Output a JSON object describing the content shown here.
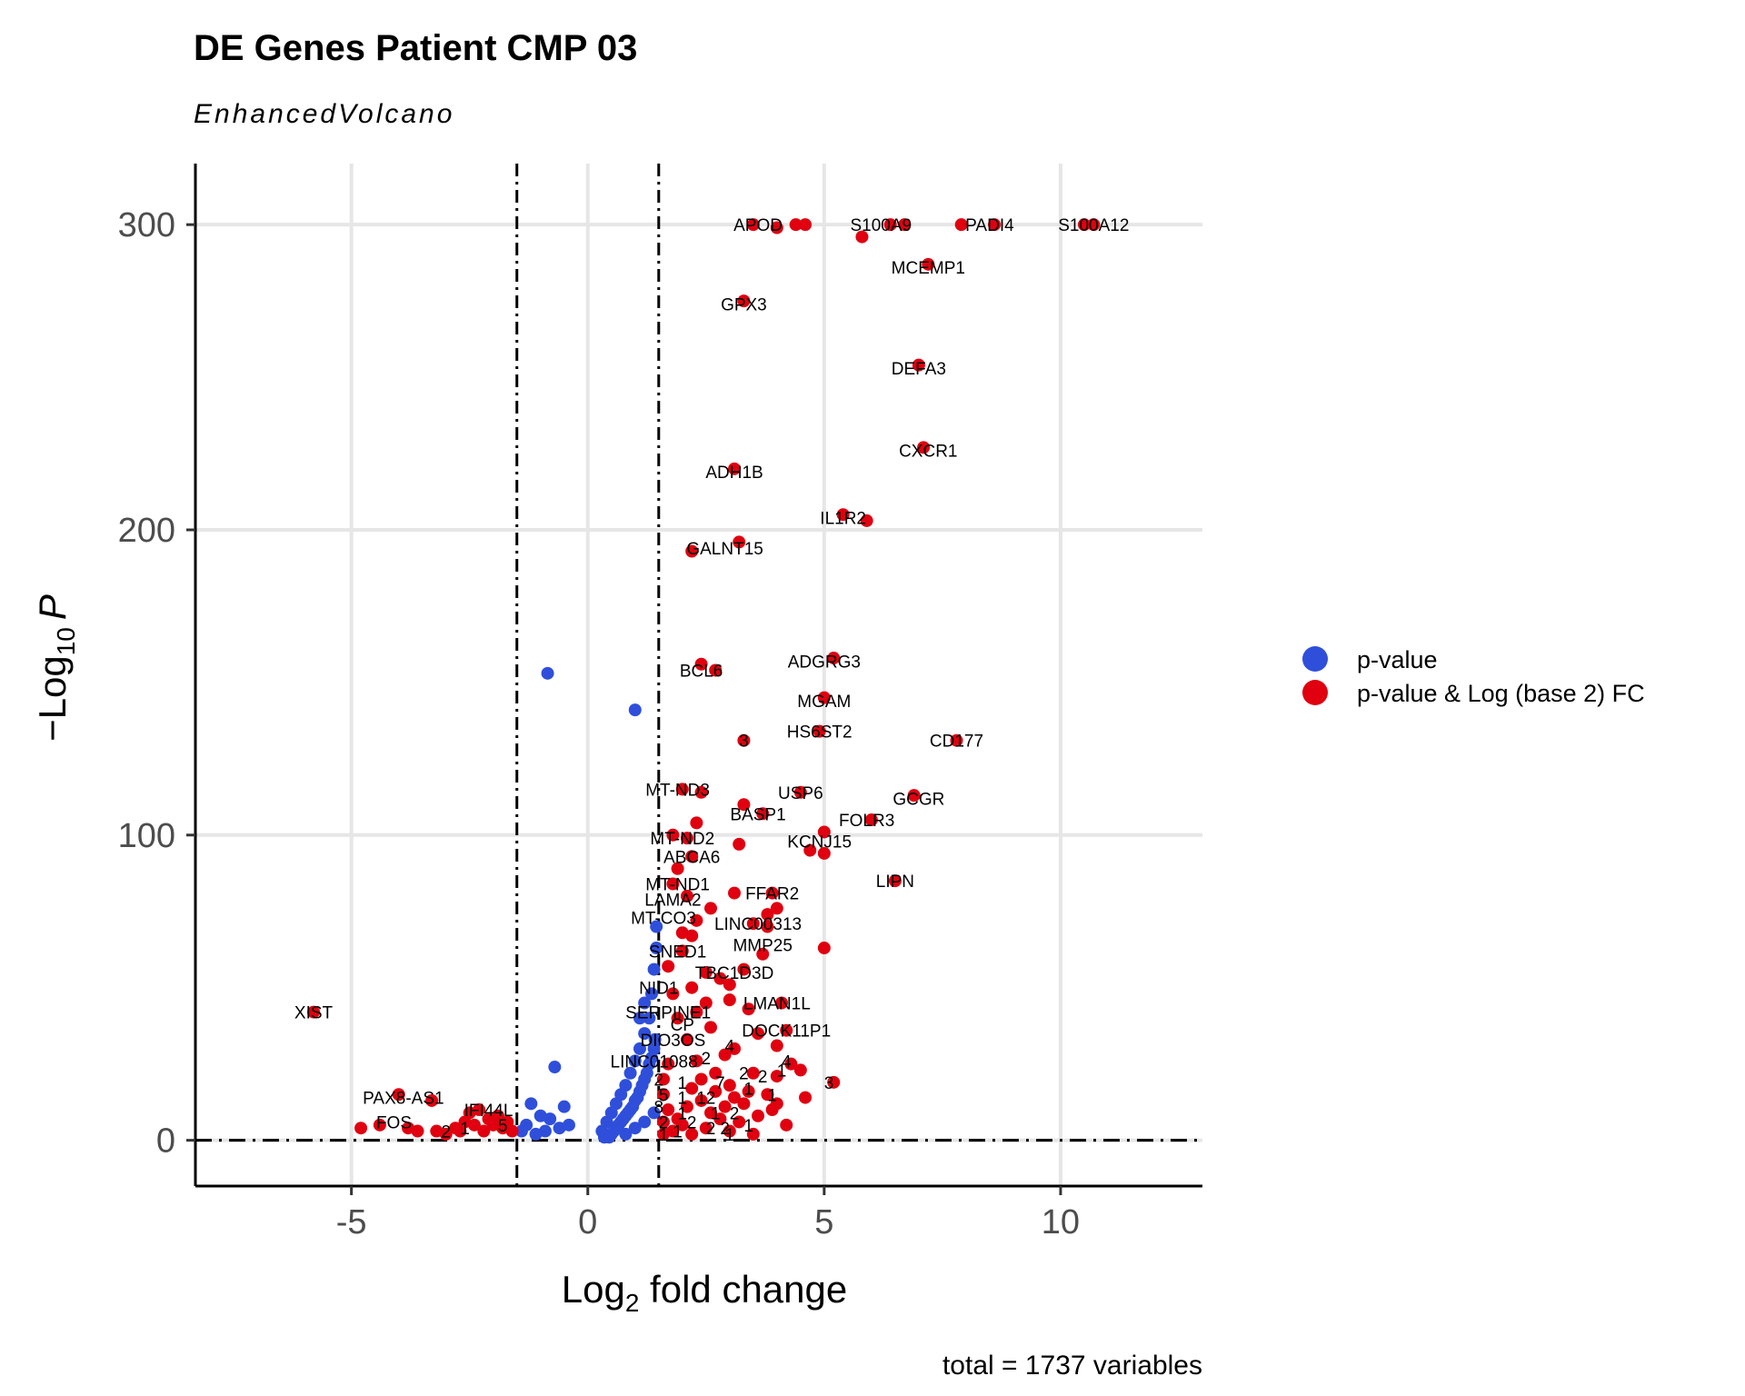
{
  "chart_data": {
    "type": "scatter",
    "title": "DE Genes Patient CMP 03",
    "subtitle": "EnhancedVolcano",
    "xlabel": {
      "main": "Log",
      "sub": "2",
      "rest": " fold change"
    },
    "ylabel": {
      "prefix": "−Log",
      "sub": "10",
      "italic": "P"
    },
    "caption": "total = 1737 variables",
    "xlim": [
      -8.3,
      13
    ],
    "ylim": [
      -15,
      320
    ],
    "x_ticks": [
      -5,
      0,
      5,
      10
    ],
    "x_tick_labels": [
      "-5",
      "0",
      "5",
      "10"
    ],
    "y_ticks": [
      0,
      100,
      200,
      300
    ],
    "y_tick_labels": [
      "0",
      "100",
      "200",
      "300"
    ],
    "fc_cutoff": [
      -1.5,
      1.5
    ],
    "p_cutoff_y": 0,
    "grid": true,
    "legend_position": "right",
    "series": [
      {
        "name": "p-value",
        "color": "#2f4fdb",
        "points": [
          [
            -0.85,
            153
          ],
          [
            1.0,
            141
          ],
          [
            -0.7,
            24
          ],
          [
            -0.5,
            11
          ],
          [
            -1.2,
            12
          ],
          [
            -1.0,
            8
          ],
          [
            -0.8,
            7
          ],
          [
            -1.3,
            5
          ],
          [
            -0.6,
            4
          ],
          [
            -0.9,
            3
          ],
          [
            -1.1,
            2
          ],
          [
            -1.4,
            3
          ],
          [
            -0.4,
            5
          ],
          [
            0.3,
            3
          ],
          [
            0.4,
            6
          ],
          [
            0.5,
            9
          ],
          [
            0.6,
            12
          ],
          [
            0.7,
            15
          ],
          [
            0.8,
            18
          ],
          [
            0.9,
            22
          ],
          [
            1.0,
            26
          ],
          [
            1.1,
            30
          ],
          [
            1.2,
            35
          ],
          [
            1.3,
            40
          ],
          [
            1.35,
            48
          ],
          [
            1.4,
            56
          ],
          [
            1.45,
            63
          ],
          [
            1.45,
            70
          ],
          [
            0.5,
            2
          ],
          [
            0.6,
            4
          ],
          [
            0.7,
            6
          ],
          [
            0.8,
            8
          ],
          [
            0.9,
            10
          ],
          [
            1.0,
            13
          ],
          [
            1.1,
            16
          ],
          [
            1.2,
            20
          ],
          [
            1.3,
            25
          ],
          [
            1.4,
            30
          ],
          [
            0.45,
            1
          ],
          [
            0.55,
            3
          ],
          [
            0.65,
            5
          ],
          [
            0.75,
            7
          ],
          [
            0.85,
            9
          ],
          [
            0.95,
            11
          ],
          [
            1.05,
            14
          ],
          [
            1.15,
            18
          ],
          [
            1.25,
            22
          ],
          [
            1.35,
            27
          ],
          [
            1.42,
            33
          ],
          [
            0.35,
            1
          ],
          [
            0.8,
            2
          ],
          [
            1.0,
            4
          ],
          [
            1.2,
            6
          ],
          [
            1.4,
            9
          ],
          [
            1.1,
            40
          ],
          [
            1.2,
            45
          ]
        ]
      },
      {
        "name": "p-value & Log (base 2) FC",
        "color": "#e0000f",
        "points": [
          [
            3.5,
            300
          ],
          [
            4.4,
            300
          ],
          [
            4.6,
            300
          ],
          [
            6.4,
            300
          ],
          [
            6.7,
            300
          ],
          [
            7.9,
            300
          ],
          [
            8.6,
            300
          ],
          [
            10.5,
            300
          ],
          [
            10.7,
            300
          ],
          [
            4.0,
            299
          ],
          [
            5.8,
            296
          ],
          [
            7.2,
            287
          ],
          [
            3.3,
            275
          ],
          [
            7.0,
            254
          ],
          [
            7.1,
            227
          ],
          [
            3.1,
            220
          ],
          [
            5.4,
            205
          ],
          [
            5.9,
            203
          ],
          [
            3.2,
            196
          ],
          [
            2.2,
            193
          ],
          [
            5.2,
            158
          ],
          [
            2.4,
            156
          ],
          [
            2.7,
            154
          ],
          [
            5.0,
            145
          ],
          [
            4.9,
            134
          ],
          [
            7.8,
            131
          ],
          [
            3.3,
            131
          ],
          [
            2.0,
            115
          ],
          [
            2.4,
            114
          ],
          [
            4.5,
            114
          ],
          [
            6.9,
            113
          ],
          [
            3.3,
            110
          ],
          [
            3.7,
            107
          ],
          [
            6.0,
            105
          ],
          [
            2.3,
            104
          ],
          [
            5.0,
            101
          ],
          [
            1.8,
            100
          ],
          [
            2.1,
            99
          ],
          [
            3.2,
            97
          ],
          [
            4.7,
            95
          ],
          [
            5.0,
            94
          ],
          [
            1.9,
            89
          ],
          [
            2.2,
            93
          ],
          [
            6.5,
            85
          ],
          [
            1.8,
            84
          ],
          [
            2.1,
            80
          ],
          [
            3.1,
            81
          ],
          [
            3.9,
            81
          ],
          [
            4.0,
            76
          ],
          [
            3.8,
            74
          ],
          [
            2.6,
            76
          ],
          [
            2.3,
            72
          ],
          [
            3.5,
            71
          ],
          [
            3.8,
            70
          ],
          [
            2.0,
            68
          ],
          [
            2.2,
            67
          ],
          [
            3.7,
            61
          ],
          [
            5.0,
            63
          ],
          [
            2.0,
            62
          ],
          [
            1.7,
            57
          ],
          [
            2.5,
            55
          ],
          [
            2.8,
            53
          ],
          [
            3.3,
            56
          ],
          [
            3.0,
            51
          ],
          [
            2.2,
            50
          ],
          [
            1.8,
            48
          ],
          [
            4.1,
            45
          ],
          [
            2.5,
            45
          ],
          [
            3.0,
            46
          ],
          [
            1.9,
            40
          ],
          [
            2.3,
            42
          ],
          [
            3.4,
            43
          ],
          [
            4.2,
            36
          ],
          [
            2.6,
            37
          ],
          [
            3.6,
            35
          ],
          [
            4.0,
            31
          ],
          [
            2.1,
            33
          ],
          [
            3.1,
            30
          ],
          [
            2.9,
            28
          ],
          [
            2.3,
            26
          ],
          [
            4.3,
            25
          ],
          [
            4.5,
            23
          ],
          [
            3.5,
            22
          ],
          [
            4.0,
            21
          ],
          [
            5.2,
            19
          ],
          [
            3.0,
            18
          ],
          [
            2.7,
            16
          ],
          [
            3.8,
            15
          ],
          [
            4.6,
            14
          ],
          [
            2.4,
            13
          ],
          [
            3.3,
            12
          ],
          [
            2.1,
            11
          ],
          [
            3.9,
            10
          ],
          [
            2.6,
            9
          ],
          [
            3.6,
            8
          ],
          [
            2.8,
            7
          ],
          [
            3.2,
            6
          ],
          [
            2.0,
            5
          ],
          [
            4.2,
            5
          ],
          [
            2.5,
            4
          ],
          [
            3.0,
            3
          ],
          [
            3.5,
            2
          ],
          [
            1.8,
            3
          ],
          [
            2.2,
            2
          ],
          [
            1.9,
            7
          ],
          [
            1.7,
            10
          ],
          [
            1.6,
            15
          ],
          [
            1.6,
            20
          ],
          [
            1.7,
            25
          ],
          [
            2.4,
            20
          ],
          [
            2.7,
            22
          ],
          [
            3.4,
            16
          ],
          [
            3.1,
            14
          ],
          [
            2.9,
            11
          ],
          [
            2.2,
            17
          ],
          [
            4.0,
            12
          ],
          [
            1.6,
            6
          ],
          [
            1.6,
            2
          ],
          [
            -5.8,
            42
          ],
          [
            -4.0,
            15
          ],
          [
            -3.3,
            13
          ],
          [
            -4.8,
            4
          ],
          [
            -4.4,
            5
          ],
          [
            -3.6,
            3
          ],
          [
            -3.8,
            4
          ],
          [
            -3.0,
            2
          ],
          [
            -2.8,
            4
          ],
          [
            -2.6,
            6
          ],
          [
            -2.4,
            5
          ],
          [
            -2.2,
            3
          ],
          [
            -2.0,
            5
          ],
          [
            -1.9,
            8
          ],
          [
            -2.5,
            9
          ],
          [
            -2.3,
            10
          ],
          [
            -1.8,
            4
          ],
          [
            -2.7,
            3
          ],
          [
            -3.2,
            3
          ],
          [
            -2.1,
            7
          ],
          [
            -1.7,
            6
          ],
          [
            -1.6,
            3
          ]
        ]
      }
    ],
    "gene_labels": [
      {
        "text": "APOD",
        "x": 3.6,
        "y": 300
      },
      {
        "text": "S100A9",
        "x": 6.2,
        "y": 300
      },
      {
        "text": "PADI4",
        "x": 8.5,
        "y": 300
      },
      {
        "text": "S100A12",
        "x": 10.7,
        "y": 300
      },
      {
        "text": "MCEMP1",
        "x": 7.2,
        "y": 286
      },
      {
        "text": "GPX3",
        "x": 3.3,
        "y": 274
      },
      {
        "text": "DEFA3",
        "x": 7.0,
        "y": 253
      },
      {
        "text": "CXCR1",
        "x": 7.2,
        "y": 226
      },
      {
        "text": "ADH1B",
        "x": 3.1,
        "y": 219
      },
      {
        "text": "IL1R2",
        "x": 5.4,
        "y": 204
      },
      {
        "text": "GALNT15",
        "x": 2.9,
        "y": 194
      },
      {
        "text": "ADGRG3",
        "x": 5.0,
        "y": 157
      },
      {
        "text": "BCL6",
        "x": 2.4,
        "y": 154
      },
      {
        "text": "MGAM",
        "x": 5.0,
        "y": 144
      },
      {
        "text": "HS6ST2",
        "x": 4.9,
        "y": 134
      },
      {
        "text": "CD177",
        "x": 7.8,
        "y": 131
      },
      {
        "text": "3",
        "x": 3.3,
        "y": 131
      },
      {
        "text": "MT-ND3",
        "x": 1.9,
        "y": 115
      },
      {
        "text": "USP6",
        "x": 4.5,
        "y": 114
      },
      {
        "text": "GCGR",
        "x": 7.0,
        "y": 112
      },
      {
        "text": "BASP1",
        "x": 3.6,
        "y": 107
      },
      {
        "text": "FOLR3",
        "x": 5.9,
        "y": 105
      },
      {
        "text": "MT-ND2",
        "x": 2.0,
        "y": 99
      },
      {
        "text": "KCNJ15",
        "x": 4.9,
        "y": 98
      },
      {
        "text": "ABCA6",
        "x": 2.2,
        "y": 93
      },
      {
        "text": "LIPN",
        "x": 6.5,
        "y": 85
      },
      {
        "text": "MT-ND1",
        "x": 1.9,
        "y": 84
      },
      {
        "text": "FFAR2",
        "x": 3.9,
        "y": 81
      },
      {
        "text": "LAMA2",
        "x": 1.8,
        "y": 79
      },
      {
        "text": "MT-CO3",
        "x": 1.6,
        "y": 73
      },
      {
        "text": "LINC00313",
        "x": 3.6,
        "y": 71
      },
      {
        "text": "MMP25",
        "x": 3.7,
        "y": 64
      },
      {
        "text": "SNED1",
        "x": 1.9,
        "y": 62
      },
      {
        "text": "TBC1D3D",
        "x": 3.1,
        "y": 55
      },
      {
        "text": "NID1",
        "x": 1.5,
        "y": 50
      },
      {
        "text": "LMAN1L",
        "x": 4.0,
        "y": 45
      },
      {
        "text": "SERPINE1",
        "x": 1.7,
        "y": 42
      },
      {
        "text": "CP",
        "x": 2.0,
        "y": 38
      },
      {
        "text": "DOCK11P1",
        "x": 4.2,
        "y": 36
      },
      {
        "text": "DIO3OS",
        "x": 1.8,
        "y": 33
      },
      {
        "text": "LINC01088",
        "x": 1.4,
        "y": 26
      },
      {
        "text": "XIST",
        "x": -5.8,
        "y": 42
      },
      {
        "text": "PAX8-AS1",
        "x": -3.9,
        "y": 14
      },
      {
        "text": "FOS",
        "x": -4.1,
        "y": 6
      },
      {
        "text": "IFI44L",
        "x": -2.1,
        "y": 10
      },
      {
        "text": "5",
        "x": -1.8,
        "y": 5
      },
      {
        "text": "2",
        "x": -3.0,
        "y": 3
      },
      {
        "text": "1",
        "x": -2.6,
        "y": 4
      },
      {
        "text": "2",
        "x": 1.5,
        "y": 20
      },
      {
        "text": "1",
        "x": 2.0,
        "y": 19
      },
      {
        "text": "7",
        "x": 2.8,
        "y": 19
      },
      {
        "text": "2",
        "x": 3.7,
        "y": 21
      },
      {
        "text": "1",
        "x": 4.1,
        "y": 23
      },
      {
        "text": "3",
        "x": 5.1,
        "y": 19
      },
      {
        "text": "2",
        "x": 3.3,
        "y": 22
      },
      {
        "text": "1",
        "x": 3.9,
        "y": 15
      },
      {
        "text": "5",
        "x": 1.6,
        "y": 15
      },
      {
        "text": "1",
        "x": 2.0,
        "y": 14
      },
      {
        "text": "12",
        "x": 2.5,
        "y": 14
      },
      {
        "text": "1",
        "x": 3.4,
        "y": 17
      },
      {
        "text": "8",
        "x": 1.5,
        "y": 11
      },
      {
        "text": "1",
        "x": 2.0,
        "y": 9
      },
      {
        "text": "1",
        "x": 2.7,
        "y": 9
      },
      {
        "text": "2",
        "x": 3.1,
        "y": 9
      },
      {
        "text": "2",
        "x": 1.6,
        "y": 6
      },
      {
        "text": "1",
        "x": 1.9,
        "y": 3
      },
      {
        "text": "2",
        "x": 2.2,
        "y": 6
      },
      {
        "text": "2",
        "x": 2.6,
        "y": 4
      },
      {
        "text": "1",
        "x": 3.4,
        "y": 5
      },
      {
        "text": "2",
        "x": 2.9,
        "y": 4
      },
      {
        "text": "1",
        "x": 3.0,
        "y": 2
      },
      {
        "text": "1",
        "x": 1.6,
        "y": 2
      },
      {
        "text": "2",
        "x": 2.5,
        "y": 27
      },
      {
        "text": "4",
        "x": 4.2,
        "y": 26
      },
      {
        "text": "4",
        "x": 3.0,
        "y": 31
      }
    ]
  }
}
